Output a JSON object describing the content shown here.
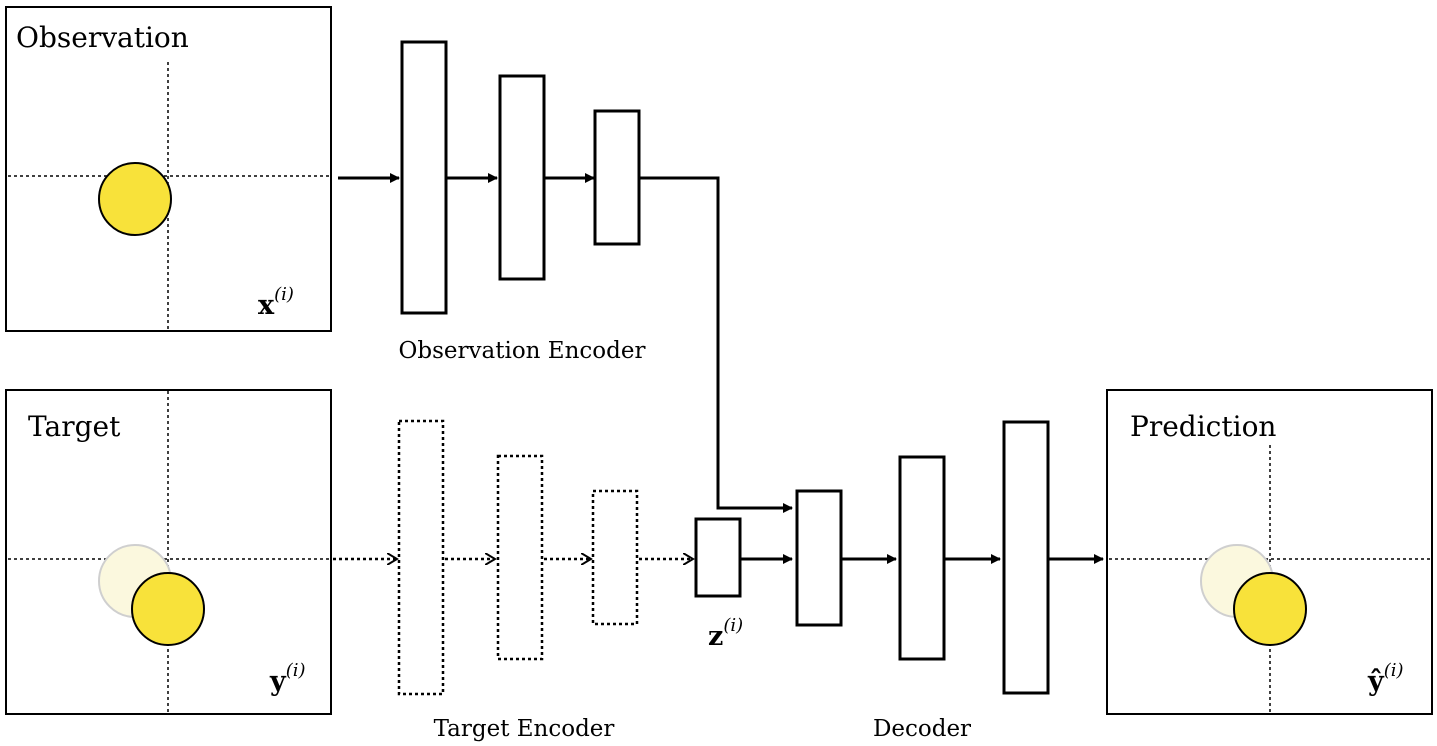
{
  "panels": {
    "observation": {
      "title": "Observation",
      "var_base": "x",
      "var_sup": "(i)"
    },
    "target": {
      "title": "Target",
      "var_base": "y",
      "var_sup": "(i)"
    },
    "prediction": {
      "title": "Prediction",
      "var_base": "ŷ",
      "var_sup": "(i)"
    }
  },
  "encoders": {
    "observation_label": "Observation Encoder",
    "target_label": "Target Encoder",
    "decoder_label": "Decoder"
  },
  "latent": {
    "var_base": "z",
    "var_sup": "(i)"
  },
  "colors": {
    "ball": "#f8e23a",
    "ghost_ball": "#fbf8de",
    "ghost_stroke": "#cfcfcf",
    "line": "#000000"
  }
}
